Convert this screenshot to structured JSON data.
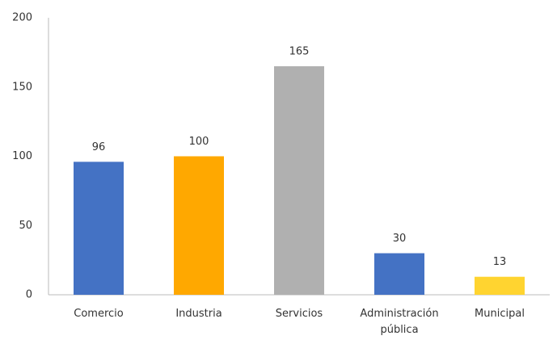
{
  "chart_data": {
    "type": "bar",
    "categories": [
      "Comercio",
      "Industria",
      "Servicios",
      "Administración pública",
      "Municipal"
    ],
    "values": [
      96,
      100,
      165,
      30,
      13
    ],
    "colors": [
      "#4472c4",
      "#ffa800",
      "#b0b0b0",
      "#4472c4",
      "#ffd430"
    ],
    "ylim": [
      0,
      200
    ],
    "yticks": [
      0,
      50,
      100,
      150,
      200
    ],
    "grid": false
  }
}
